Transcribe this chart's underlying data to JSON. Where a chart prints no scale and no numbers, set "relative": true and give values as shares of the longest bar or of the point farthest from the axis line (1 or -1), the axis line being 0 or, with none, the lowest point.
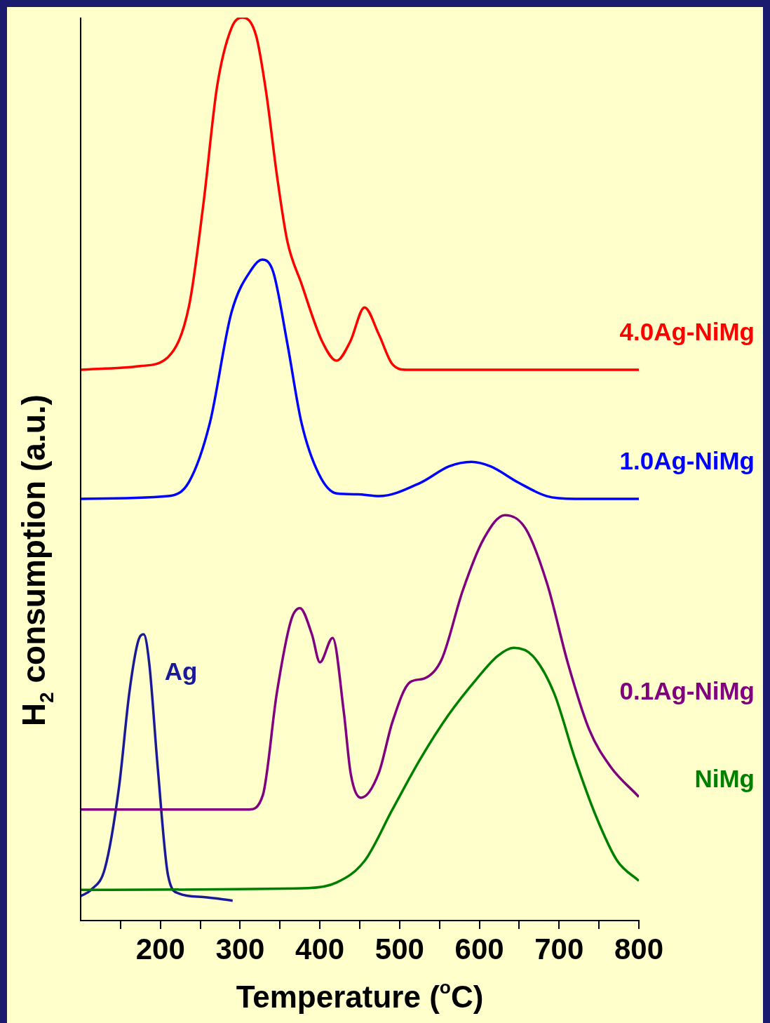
{
  "chart_data": {
    "type": "line",
    "relative": true,
    "xlabel": "Temperature ($^{o}$C)",
    "ylabel": "H$_{2}$ consumption (a.u.)",
    "xlim": [
      100,
      800
    ],
    "xticks": [
      {
        "value": 150,
        "label": null
      },
      200,
      {
        "value": 250,
        "label": null
      },
      300,
      {
        "value": 350,
        "label": null
      },
      400,
      {
        "value": 450,
        "label": null
      },
      500,
      {
        "value": 550,
        "label": null
      },
      600,
      {
        "value": 650,
        "label": null
      },
      700,
      {
        "value": 750,
        "label": null
      },
      800
    ],
    "tick_labels": "x",
    "grid": false,
    "marker": "none",
    "line_style": "solid",
    "series": [
      {
        "name": "4.0Ag-NiMg",
        "color": "#ff0000",
        "x": [
          100,
          174.5,
          209.6,
          236,
          254,
          271,
          289,
          303,
          320,
          333,
          346,
          359,
          377,
          403,
          421,
          438,
          456,
          474,
          491,
          509,
          800
        ],
        "values": [
          0.61,
          0.614,
          0.624,
          0.681,
          0.794,
          0.923,
          0.988,
          1.0,
          0.98,
          0.915,
          0.826,
          0.753,
          0.705,
          0.641,
          0.62,
          0.641,
          0.679,
          0.649,
          0.616,
          0.61,
          0.61
        ]
      },
      {
        "name": "1.0Ag-NiMg",
        "color": "#0000ff",
        "x": [
          100,
          209.6,
          236,
          262,
          289,
          315,
          327.6,
          341.6,
          359,
          377,
          399,
          421,
          447,
          474,
          526.5,
          562,
          590,
          614,
          649,
          684.5,
          720,
          800
        ],
        "values": [
          0.467,
          0.47,
          0.486,
          0.551,
          0.673,
          0.722,
          0.732,
          0.718,
          0.64,
          0.551,
          0.494,
          0.473,
          0.472,
          0.47,
          0.485,
          0.503,
          0.508,
          0.503,
          0.485,
          0.47,
          0.467,
          0.467
        ]
      },
      {
        "name": "0.1Ag-NiMg",
        "color": "#800080",
        "x": [
          100,
          311,
          328.5,
          346,
          364,
          375,
          390,
          400,
          416,
          430,
          438.6,
          451.7,
          473.7,
          491,
          513,
          530.6,
          552.6,
          579,
          605,
          632,
          658,
          685,
          711,
          737.5,
          764,
          800
        ],
        "values": [
          0.123,
          0.123,
          0.139,
          0.252,
          0.333,
          0.346,
          0.317,
          0.286,
          0.313,
          0.231,
          0.163,
          0.136,
          0.163,
          0.22,
          0.264,
          0.268,
          0.289,
          0.365,
          0.422,
          0.449,
          0.434,
          0.373,
          0.285,
          0.212,
          0.171,
          0.137
        ]
      },
      {
        "name": "NiMg",
        "color": "#008000",
        "x": [
          100,
          385.5,
          420.7,
          456,
          491,
          526,
          561.5,
          597,
          623,
          643,
          667,
          693.6,
          720,
          746.5,
          773,
          800
        ],
        "values": [
          0.034,
          0.036,
          0.042,
          0.066,
          0.123,
          0.179,
          0.228,
          0.268,
          0.293,
          0.302,
          0.293,
          0.252,
          0.179,
          0.115,
          0.066,
          0.044
        ]
      },
      {
        "name": "Ag",
        "color": "#1a1a99",
        "x": [
          100,
          113,
          130.5,
          148,
          161,
          172,
          179,
          186,
          196.5,
          209.6,
          223,
          254,
          290.6
        ],
        "values": [
          0.027,
          0.034,
          0.058,
          0.147,
          0.252,
          0.309,
          0.317,
          0.285,
          0.171,
          0.05,
          0.03,
          0.026,
          0.022
        ]
      }
    ]
  }
}
